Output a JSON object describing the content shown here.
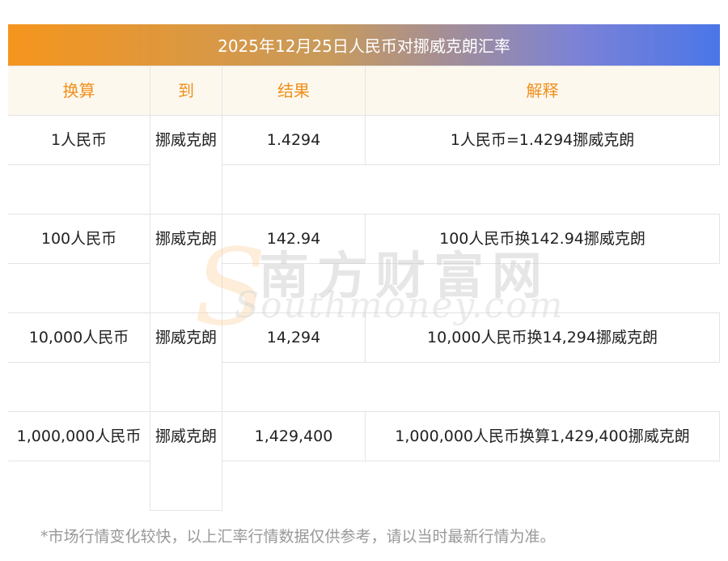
{
  "header": {
    "title": "2025年12月25日人民币对挪威克朗汇率"
  },
  "table": {
    "columns": [
      "换算",
      "到",
      "结果",
      "解释"
    ],
    "rows": [
      {
        "from": "1人民币",
        "to": "挪威克朗",
        "result": "1.4294",
        "explain": "1人民币=1.4294挪威克朗"
      },
      {
        "from": "100人民币",
        "to": "挪威克朗",
        "result": "142.94",
        "explain": "100人民币换142.94挪威克朗"
      },
      {
        "from": "10,000人民币",
        "to": "挪威克朗",
        "result": "14,294",
        "explain": "10,000人民币换14,294挪威克朗"
      },
      {
        "from": "1,000,000人民币",
        "to": "挪威克朗",
        "result": "1,429,400",
        "explain": "1,000,000人民币换算1,429,400挪威克朗"
      }
    ]
  },
  "footer": {
    "note": "*市场行情变化较快，以上汇率行情数据仅供参考，请以当时最新行情为准。"
  },
  "watermark": {
    "cn": "南方财富网",
    "en": "Southmoney.com"
  }
}
